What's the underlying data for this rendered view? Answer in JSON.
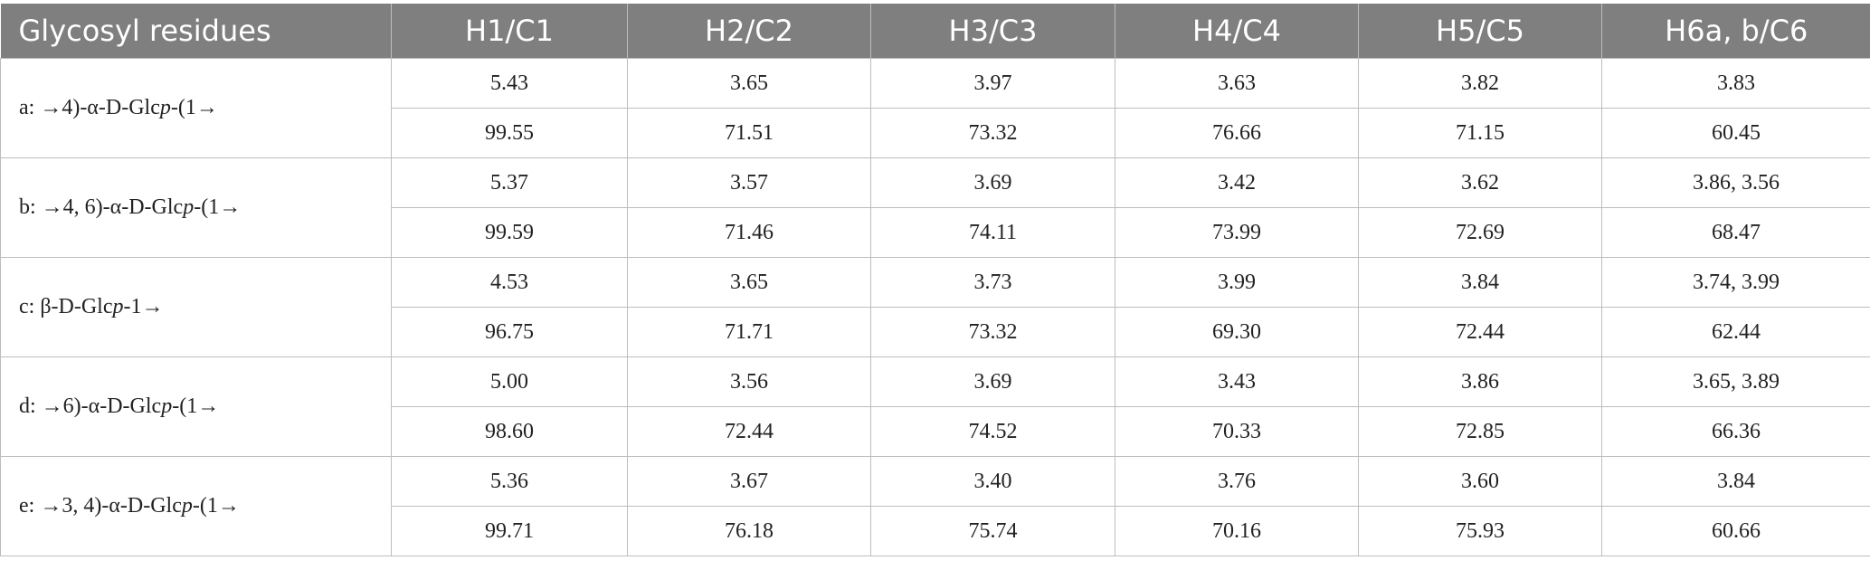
{
  "table": {
    "header": [
      "Glycosyl residues",
      "H1/C1",
      "H2/C2",
      "H3/C3",
      "H4/C4",
      "H5/C5",
      "H6a, b/C6"
    ],
    "rows": [
      {
        "name": "a: →4)-α-D-Glc",
        "italic": "p",
        "rest": "-(1→",
        "h": [
          "5.43",
          "3.65",
          "3.97",
          "3.63",
          "3.82",
          "3.83"
        ],
        "c": [
          "99.55",
          "71.51",
          "73.32",
          "76.66",
          "71.15",
          "60.45"
        ]
      },
      {
        "name": "b: →4, 6)-α-D-Glc",
        "italic": "p",
        "rest": "-(1→",
        "h": [
          "5.37",
          "3.57",
          "3.69",
          "3.42",
          "3.62",
          "3.86, 3.56"
        ],
        "c": [
          "99.59",
          "71.46",
          "74.11",
          "73.99",
          "72.69",
          "68.47"
        ]
      },
      {
        "name": "c: β-D-Glc",
        "italic": "p",
        "rest": "-1→",
        "h": [
          "4.53",
          "3.65",
          "3.73",
          "3.99",
          "3.84",
          "3.74, 3.99"
        ],
        "c": [
          "96.75",
          "71.71",
          "73.32",
          "69.30",
          "72.44",
          "62.44"
        ]
      },
      {
        "name": "d: →6)-α-D-Glc",
        "italic": "p",
        "rest": "-(1→",
        "h": [
          "5.00",
          "3.56",
          "3.69",
          "3.43",
          "3.86",
          "3.65, 3.89"
        ],
        "c": [
          "98.60",
          "72.44",
          "74.52",
          "70.33",
          "72.85",
          "66.36"
        ]
      },
      {
        "name": "e: →3, 4)-α-D-Glc",
        "italic": "p",
        "rest": "-(1→",
        "h": [
          "5.36",
          "3.67",
          "3.40",
          "3.76",
          "3.60",
          "3.84"
        ],
        "c": [
          "99.71",
          "76.18",
          "75.74",
          "70.16",
          "75.93",
          "60.66"
        ]
      }
    ]
  }
}
